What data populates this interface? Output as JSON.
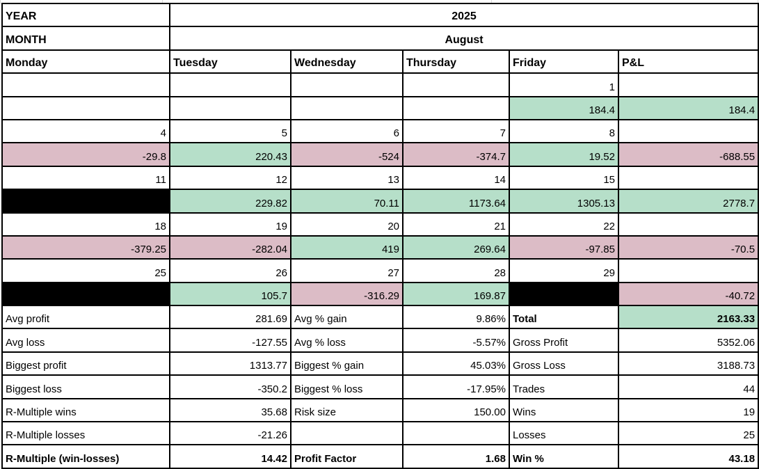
{
  "meta": {
    "year_label": "YEAR",
    "year_value": "2025",
    "month_label": "MONTH",
    "month_value": "August"
  },
  "colors": {
    "green": "#b6dfc9",
    "pink": "#dcbcc6",
    "black": "#000000",
    "border": "#000000",
    "gridline": "#d9d9d9"
  },
  "day_headers": [
    "Monday",
    "Tuesday",
    "Wednesday",
    "Thursday",
    "Friday",
    "P&L"
  ],
  "weeks": [
    {
      "dates": [
        "",
        "",
        "",
        "",
        "1",
        ""
      ],
      "values": [
        {
          "t": "",
          "bg": ""
        },
        {
          "t": "",
          "bg": ""
        },
        {
          "t": "",
          "bg": ""
        },
        {
          "t": "",
          "bg": ""
        },
        {
          "t": "184.4",
          "bg": "green"
        },
        {
          "t": "184.4",
          "bg": "green"
        }
      ]
    },
    {
      "dates": [
        "4",
        "5",
        "6",
        "7",
        "8",
        ""
      ],
      "values": [
        {
          "t": "-29.8",
          "bg": "pink"
        },
        {
          "t": "220.43",
          "bg": "green"
        },
        {
          "t": "-524",
          "bg": "pink"
        },
        {
          "t": "-374.7",
          "bg": "pink"
        },
        {
          "t": "19.52",
          "bg": "green"
        },
        {
          "t": "-688.55",
          "bg": "pink"
        }
      ]
    },
    {
      "dates": [
        "11",
        "12",
        "13",
        "14",
        "15",
        ""
      ],
      "values": [
        {
          "t": "",
          "bg": "black"
        },
        {
          "t": "229.82",
          "bg": "green"
        },
        {
          "t": "70.11",
          "bg": "green"
        },
        {
          "t": "1173.64",
          "bg": "green"
        },
        {
          "t": "1305.13",
          "bg": "green"
        },
        {
          "t": "2778.7",
          "bg": "green"
        }
      ]
    },
    {
      "dates": [
        "18",
        "19",
        "20",
        "21",
        "22",
        ""
      ],
      "values": [
        {
          "t": "-379.25",
          "bg": "pink"
        },
        {
          "t": "-282.04",
          "bg": "pink"
        },
        {
          "t": "419",
          "bg": "green"
        },
        {
          "t": "269.64",
          "bg": "green"
        },
        {
          "t": "-97.85",
          "bg": "pink"
        },
        {
          "t": "-70.5",
          "bg": "pink"
        }
      ]
    },
    {
      "dates": [
        "25",
        "26",
        "27",
        "28",
        "29",
        ""
      ],
      "values": [
        {
          "t": "",
          "bg": "black"
        },
        {
          "t": "105.7",
          "bg": "green"
        },
        {
          "t": "-316.29",
          "bg": "pink"
        },
        {
          "t": "169.87",
          "bg": "green"
        },
        {
          "t": "",
          "bg": "black"
        },
        {
          "t": "-40.72",
          "bg": "pink"
        }
      ]
    }
  ],
  "stats_rows": [
    [
      {
        "t": "Avg profit",
        "b": false,
        "bg": ""
      },
      {
        "t": "281.69",
        "b": false,
        "bg": ""
      },
      {
        "t": "Avg % gain",
        "b": false,
        "bg": ""
      },
      {
        "t": "9.86%",
        "b": false,
        "bg": ""
      },
      {
        "t": "Total",
        "b": true,
        "bg": ""
      },
      {
        "t": "2163.33",
        "b": true,
        "bg": "green"
      }
    ],
    [
      {
        "t": "Avg loss",
        "b": false,
        "bg": ""
      },
      {
        "t": "-127.55",
        "b": false,
        "bg": ""
      },
      {
        "t": "Avg % loss",
        "b": false,
        "bg": ""
      },
      {
        "t": "-5.57%",
        "b": false,
        "bg": ""
      },
      {
        "t": "Gross Profit",
        "b": false,
        "bg": ""
      },
      {
        "t": "5352.06",
        "b": false,
        "bg": ""
      }
    ],
    [
      {
        "t": "Biggest profit",
        "b": false,
        "bg": ""
      },
      {
        "t": "1313.77",
        "b": false,
        "bg": ""
      },
      {
        "t": "Biggest % gain",
        "b": false,
        "bg": ""
      },
      {
        "t": "45.03%",
        "b": false,
        "bg": ""
      },
      {
        "t": "Gross Loss",
        "b": false,
        "bg": ""
      },
      {
        "t": "3188.73",
        "b": false,
        "bg": ""
      }
    ],
    [
      {
        "t": "Biggest loss",
        "b": false,
        "bg": ""
      },
      {
        "t": "-350.2",
        "b": false,
        "bg": ""
      },
      {
        "t": "Biggest % loss",
        "b": false,
        "bg": ""
      },
      {
        "t": "-17.95%",
        "b": false,
        "bg": ""
      },
      {
        "t": "Trades",
        "b": false,
        "bg": ""
      },
      {
        "t": "44",
        "b": false,
        "bg": ""
      }
    ],
    [
      {
        "t": "R-Multiple wins",
        "b": false,
        "bg": ""
      },
      {
        "t": "35.68",
        "b": false,
        "bg": ""
      },
      {
        "t": "Risk size",
        "b": false,
        "bg": ""
      },
      {
        "t": "150.00",
        "b": false,
        "bg": ""
      },
      {
        "t": "Wins",
        "b": false,
        "bg": ""
      },
      {
        "t": "19",
        "b": false,
        "bg": ""
      }
    ],
    [
      {
        "t": "R-Multiple losses",
        "b": false,
        "bg": ""
      },
      {
        "t": "-21.26",
        "b": false,
        "bg": ""
      },
      {
        "t": "",
        "b": false,
        "bg": ""
      },
      {
        "t": "",
        "b": false,
        "bg": ""
      },
      {
        "t": "Losses",
        "b": false,
        "bg": ""
      },
      {
        "t": "25",
        "b": false,
        "bg": ""
      }
    ],
    [
      {
        "t": "R-Multiple (win-losses)",
        "b": true,
        "bg": ""
      },
      {
        "t": "14.42",
        "b": true,
        "bg": ""
      },
      {
        "t": "Profit Factor",
        "b": true,
        "bg": ""
      },
      {
        "t": "1.68",
        "b": true,
        "bg": ""
      },
      {
        "t": "Win %",
        "b": true,
        "bg": ""
      },
      {
        "t": "43.18",
        "b": true,
        "bg": ""
      }
    ]
  ]
}
